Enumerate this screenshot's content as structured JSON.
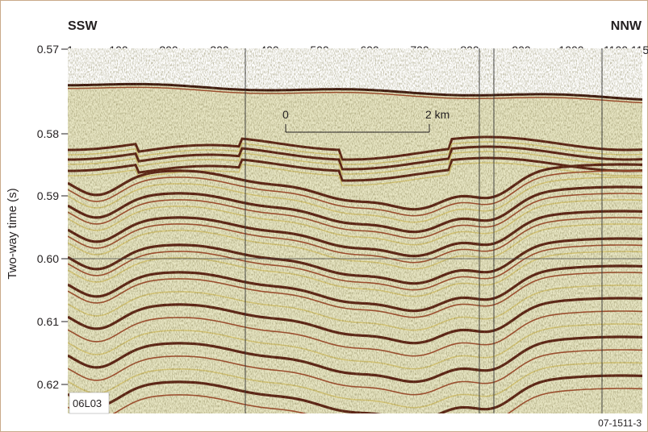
{
  "profile": {
    "line_label": "06L03",
    "figure_id": "07-1511-3",
    "direction_left": "SSW",
    "direction_right": "NNW",
    "trace_numbers": [
      "1",
      "100",
      "200",
      "300",
      "400",
      "500",
      "600",
      "700",
      "800",
      "900",
      "1000",
      "1100",
      "115"
    ],
    "y_axis_label": "Two-way time (s)",
    "y_ticks": [
      "0.57",
      "0.58",
      "0.59",
      "0.60",
      "0.61",
      "0.62"
    ],
    "scale_bar": {
      "start_label": "0",
      "end_label": "2 km"
    }
  },
  "colors": {
    "background": "#e8e6c4",
    "reflector_dark": "#5a1e12",
    "reflector_mid": "#a04a2c",
    "reflector_light": "#d8c878",
    "seabed": "#3a120a",
    "water": "#ffffff",
    "frame": "#c9a98a"
  }
}
